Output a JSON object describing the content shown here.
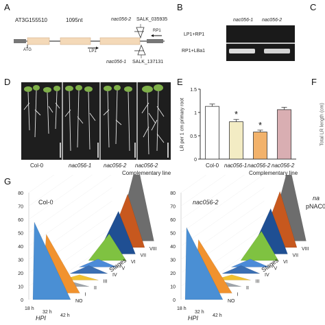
{
  "panel_letters": {
    "a": "A",
    "b": "B",
    "c": "C",
    "d": "D",
    "e": "E",
    "f": "F",
    "g": "G"
  },
  "panel_a": {
    "gene": "AT3G155510",
    "length": "1095nt",
    "atg": "ATG",
    "lp1": "LP1",
    "rp1": "RP1",
    "nac056_2_label": "nac056-2",
    "nac056_2_salk": "SALK_035935",
    "nac056_1_label": "nac056-1",
    "nac056_1_salk": "SALK_137131"
  },
  "panel_b": {
    "col_labels": [
      "nac056-1",
      "nac056-2"
    ],
    "row_labels": [
      "LP1+RP1",
      "RP1+LBa1"
    ]
  },
  "panel_d": {
    "labels": [
      "Col-0",
      "nac056-1",
      "nac056-2",
      "nac056-2"
    ],
    "complementary": "Complementary line"
  },
  "panel_e": {
    "ylabel": "LR per 1 cm primary root",
    "complementary": "Complementary line",
    "significance": "*"
  },
  "panel_f": {
    "ylabel": "Total LR length (cm)"
  },
  "panel_g": {
    "left_title": "Col-0",
    "right_title": "nac056-2",
    "edge_text_1": "na",
    "edge_text_2": "pNAC0",
    "z_label": "HPI",
    "stage_label": "Stages",
    "z_ticks": [
      "18 h",
      "32 h",
      "42 h"
    ],
    "stage_ticks": [
      "NO",
      "I",
      "II",
      "III",
      "IV",
      "V",
      "VI",
      "VII",
      "VIII"
    ],
    "y_ticks": [
      "0",
      "10",
      "20",
      "30",
      "40",
      "50",
      "60",
      "70",
      "80"
    ]
  },
  "chart_data": [
    {
      "type": "bar",
      "categories": [
        "Col-0",
        "nac056-1",
        "nac056-2",
        "nac056-2"
      ],
      "values": [
        1.13,
        0.8,
        0.58,
        1.06
      ],
      "errors": [
        0.05,
        0.05,
        0.04,
        0.05
      ],
      "significant": [
        false,
        true,
        true,
        false
      ],
      "colors": [
        "#ffffff",
        "#f3ecc4",
        "#f2b26b",
        "#d9aeb2"
      ],
      "ylim": [
        0,
        1.5
      ],
      "yticks": [
        0,
        0.5,
        1,
        1.5
      ],
      "ylabel": "LR per 1 cm primary root"
    }
  ]
}
